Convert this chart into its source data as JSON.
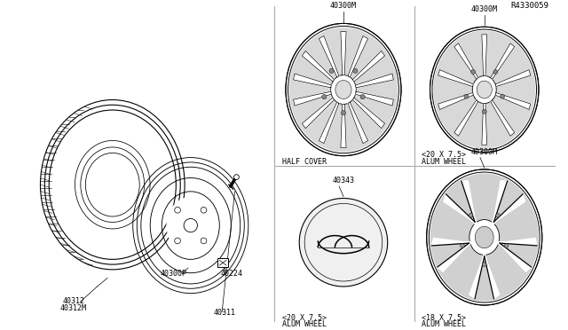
{
  "bg_color": "#ffffff",
  "line_color": "#000000",
  "diagram_ref": "R4330059",
  "parts": {
    "tire_label1": "40312M",
    "tire_label2": "40312",
    "valve_label": "40311",
    "wheel_label": "40300P",
    "nut_label": "40224",
    "wheel_top_left_title": "ALUM WHEEL",
    "wheel_top_left_size": "<20 X 7.5>",
    "wheel_top_left_part": "40300M",
    "wheel_top_right_title": "ALUM WHEEL",
    "wheel_top_right_size": "<18 X 7.5>",
    "wheel_top_right_part": "40300M",
    "cover_title": "HALF COVER",
    "cover_part": "40343",
    "wheel_bot_right_title": "ALUM WHEEL",
    "wheel_bot_right_size": "<20 X 7.5>",
    "wheel_bot_right_part": "40300M"
  }
}
